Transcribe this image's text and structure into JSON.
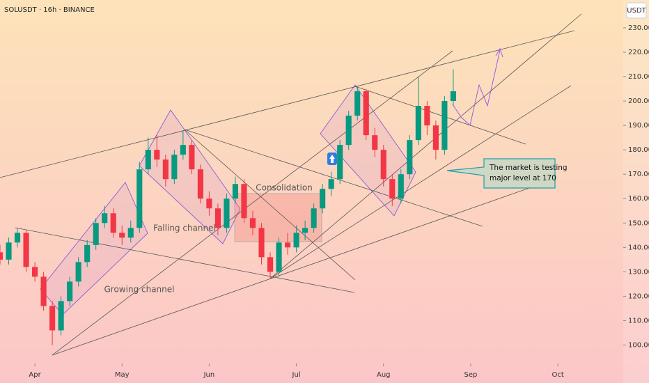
{
  "chart_data": {
    "type": "candlestick",
    "title": "SOLUSDT · 16h · BINANCE",
    "y_axis_unit": "USDT",
    "x": [
      3.6,
      3.7,
      3.8,
      3.9,
      4.0,
      4.1,
      4.2,
      4.3,
      4.4,
      4.5,
      4.6,
      4.7,
      4.8,
      4.9,
      5.0,
      5.1,
      5.2,
      5.3,
      5.4,
      5.5,
      5.6,
      5.7,
      5.8,
      5.9,
      6.0,
      6.1,
      6.2,
      6.3,
      6.4,
      6.5,
      6.6,
      6.7,
      6.8,
      6.9,
      7.0,
      7.1,
      7.2,
      7.3,
      7.4,
      7.5,
      7.6,
      7.7,
      7.8,
      7.9,
      8.0,
      8.1,
      8.2,
      8.3,
      8.4,
      8.5,
      8.6,
      8.7,
      8.8
    ],
    "open": [
      138,
      135,
      142,
      146,
      132,
      128,
      116,
      106,
      118,
      126,
      134,
      141,
      150,
      154,
      146,
      144,
      148,
      172,
      180,
      176,
      168,
      178,
      182,
      172,
      160,
      156,
      148,
      160,
      166,
      152,
      148,
      136,
      130,
      142,
      140,
      146,
      148,
      156,
      164,
      168,
      182,
      194,
      204,
      186,
      180,
      168,
      160,
      170,
      184,
      198,
      190,
      180,
      200
    ],
    "high": [
      141,
      144,
      148,
      147,
      134,
      130,
      118,
      120,
      128,
      136,
      143,
      152,
      157,
      156,
      149,
      151,
      175,
      185,
      186,
      178,
      180,
      188,
      184,
      174,
      163,
      158,
      162,
      169,
      168,
      155,
      150,
      138,
      144,
      146,
      149,
      151,
      158,
      166,
      171,
      184,
      196,
      206,
      205,
      189,
      182,
      170,
      172,
      186,
      210,
      200,
      192,
      202,
      213
    ],
    "low": [
      133,
      133,
      140,
      130,
      126,
      114,
      100,
      104,
      116,
      124,
      132,
      139,
      148,
      144,
      141,
      142,
      146,
      170,
      173,
      165,
      166,
      176,
      170,
      158,
      153,
      145,
      146,
      158,
      150,
      145,
      133,
      127,
      128,
      137,
      138,
      143,
      146,
      154,
      161,
      166,
      180,
      192,
      184,
      177,
      165,
      157,
      158,
      168,
      182,
      186,
      176,
      178,
      198
    ],
    "close": [
      135,
      142,
      146,
      132,
      128,
      116,
      106,
      118,
      126,
      134,
      141,
      150,
      154,
      146,
      144,
      148,
      172,
      180,
      176,
      168,
      178,
      182,
      172,
      160,
      156,
      148,
      160,
      166,
      152,
      148,
      136,
      130,
      142,
      140,
      146,
      148,
      156,
      164,
      168,
      182,
      194,
      204,
      186,
      180,
      168,
      160,
      170,
      184,
      198,
      190,
      180,
      200,
      204
    ],
    "up_color": "#089981",
    "down_color": "#f23645",
    "xlim": [
      3.6,
      10.75
    ],
    "xticks": [
      {
        "value": 4,
        "label": "Apr"
      },
      {
        "value": 5,
        "label": "May"
      },
      {
        "value": 6,
        "label": "Jun"
      },
      {
        "value": 7,
        "label": "Jul"
      },
      {
        "value": 8,
        "label": "Aug"
      },
      {
        "value": 9,
        "label": "Sep"
      },
      {
        "value": 10,
        "label": "Oct"
      }
    ],
    "ylim": [
      93,
      241.4
    ],
    "yticks": [
      {
        "value": 100,
        "label": "100.00"
      },
      {
        "value": 110,
        "label": "110.00"
      },
      {
        "value": 120,
        "label": "120.00"
      },
      {
        "value": 130,
        "label": "130.00"
      },
      {
        "value": 140,
        "label": "140.00"
      },
      {
        "value": 150,
        "label": "150.00"
      },
      {
        "value": 160,
        "label": "160.00"
      },
      {
        "value": 170,
        "label": "170.00"
      },
      {
        "value": 180,
        "label": "180.00"
      },
      {
        "value": 190,
        "label": "190.00"
      },
      {
        "value": 200,
        "label": "200.00"
      },
      {
        "value": 210,
        "label": "210.00"
      },
      {
        "value": 220,
        "label": "220.00"
      },
      {
        "value": 230,
        "label": "230.00"
      }
    ],
    "annotations": [
      "Growing channel",
      "Falling channel",
      "Consolidation"
    ],
    "callout": [
      "The market is testing",
      "major level at 170"
    ]
  }
}
